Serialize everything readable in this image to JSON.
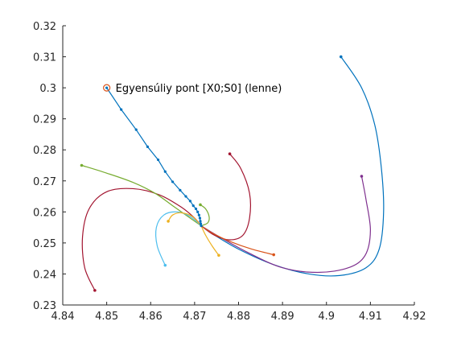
{
  "chart_data": {
    "type": "line",
    "title": "",
    "xlabel": "",
    "ylabel": "",
    "xlim": [
      4.84,
      4.92
    ],
    "ylim": [
      0.23,
      0.32
    ],
    "x_ticks": [
      "4.84",
      "4.85",
      "4.86",
      "4.87",
      "4.88",
      "4.89",
      "4.9",
      "4.91",
      "4.92"
    ],
    "y_ticks": [
      "0.23",
      "0.24",
      "0.25",
      "0.26",
      "0.27",
      "0.28",
      "0.29",
      "0.3",
      "0.31",
      "0.32"
    ],
    "grid": false,
    "equilibrium": {
      "x": 4.85,
      "y": 0.3,
      "label": "Egyensúliy pont [X0;S0] (lenne)",
      "color": "#D95319"
    },
    "center": {
      "x": 4.8715,
      "y": 0.2555
    },
    "dotted_line": {
      "color": "#0072BD",
      "points": [
        [
          4.85,
          0.3
        ],
        [
          4.8533,
          0.293
        ],
        [
          4.8567,
          0.2865
        ],
        [
          4.8593,
          0.281
        ],
        [
          4.8617,
          0.2768
        ],
        [
          4.8633,
          0.273
        ],
        [
          4.865,
          0.2697
        ],
        [
          4.8667,
          0.267
        ],
        [
          4.868,
          0.265
        ],
        [
          4.869,
          0.2635
        ],
        [
          4.8697,
          0.262
        ],
        [
          4.8703,
          0.261
        ],
        [
          4.8707,
          0.26
        ],
        [
          4.871,
          0.259
        ],
        [
          4.8712,
          0.258
        ],
        [
          4.8713,
          0.257
        ],
        [
          4.8714,
          0.2562
        ],
        [
          4.8715,
          0.2555
        ]
      ]
    },
    "series": [
      {
        "color": "#0072BD",
        "start": [
          4.9033,
          0.31
        ],
        "points": [
          [
            4.9033,
            0.31
          ],
          [
            4.908,
            0.3
          ],
          [
            4.911,
            0.288
          ],
          [
            4.9125,
            0.274
          ],
          [
            4.913,
            0.26
          ],
          [
            4.912,
            0.248
          ],
          [
            4.909,
            0.242
          ],
          [
            4.903,
            0.2395
          ],
          [
            4.896,
            0.24
          ],
          [
            4.888,
            0.243
          ],
          [
            4.88,
            0.248
          ],
          [
            4.874,
            0.253
          ],
          [
            4.8715,
            0.2555
          ]
        ]
      },
      {
        "color": "#7E2F8E",
        "start": [
          4.908,
          0.2715
        ],
        "points": [
          [
            4.908,
            0.2715
          ],
          [
            4.909,
            0.264
          ],
          [
            4.91,
            0.254
          ],
          [
            4.9088,
            0.246
          ],
          [
            4.905,
            0.242
          ],
          [
            4.898,
            0.2405
          ],
          [
            4.89,
            0.242
          ],
          [
            4.882,
            0.247
          ],
          [
            4.875,
            0.2525
          ],
          [
            4.8715,
            0.2555
          ]
        ]
      },
      {
        "color": "#A2142F",
        "start": [
          4.878,
          0.2787
        ],
        "points": [
          [
            4.878,
            0.2787
          ],
          [
            4.8805,
            0.274
          ],
          [
            4.8825,
            0.266
          ],
          [
            4.8825,
            0.258
          ],
          [
            4.881,
            0.2525
          ],
          [
            4.878,
            0.251
          ],
          [
            4.8745,
            0.2525
          ],
          [
            4.8715,
            0.2555
          ]
        ]
      },
      {
        "color": "#A2142F",
        "start": [
          4.8473,
          0.2347
        ],
        "points": [
          [
            4.8473,
            0.2347
          ],
          [
            4.845,
            0.242
          ],
          [
            4.8445,
            0.252
          ],
          [
            4.846,
            0.261
          ],
          [
            4.85,
            0.2665
          ],
          [
            4.856,
            0.2675
          ],
          [
            4.862,
            0.2655
          ],
          [
            4.867,
            0.2615
          ],
          [
            4.87,
            0.258
          ],
          [
            4.8715,
            0.2555
          ]
        ]
      },
      {
        "color": "#77AC30",
        "start": [
          4.8443,
          0.275
        ],
        "points": [
          [
            4.8443,
            0.275
          ],
          [
            4.85,
            0.2725
          ],
          [
            4.856,
            0.2695
          ],
          [
            4.861,
            0.266
          ],
          [
            4.865,
            0.262
          ],
          [
            4.8685,
            0.2585
          ],
          [
            4.8715,
            0.2555
          ]
        ]
      },
      {
        "color": "#77AC30",
        "start": [
          4.8713,
          0.2623
        ],
        "points": [
          [
            4.8713,
            0.2623
          ],
          [
            4.8725,
            0.261
          ],
          [
            4.8733,
            0.2585
          ],
          [
            4.873,
            0.2565
          ],
          [
            4.8715,
            0.2555
          ]
        ]
      },
      {
        "color": "#4DBEEE",
        "start": [
          4.8633,
          0.2428
        ],
        "points": [
          [
            4.8633,
            0.2428
          ],
          [
            4.8615,
            0.249
          ],
          [
            4.8613,
            0.255
          ],
          [
            4.863,
            0.259
          ],
          [
            4.866,
            0.26
          ],
          [
            4.869,
            0.2585
          ],
          [
            4.8715,
            0.2555
          ]
        ]
      },
      {
        "color": "#EDB120",
        "start": [
          4.864,
          0.257
        ],
        "points": [
          [
            4.864,
            0.257
          ],
          [
            4.865,
            0.259
          ],
          [
            4.867,
            0.2597
          ],
          [
            4.8695,
            0.2585
          ],
          [
            4.8715,
            0.2555
          ]
        ]
      },
      {
        "color": "#EDB120",
        "start": [
          4.8755,
          0.246
        ],
        "points": [
          [
            4.8755,
            0.246
          ],
          [
            4.874,
            0.249
          ],
          [
            4.8725,
            0.2525
          ],
          [
            4.8715,
            0.2555
          ]
        ]
      },
      {
        "color": "#D95319",
        "start": [
          4.888,
          0.2462
        ],
        "points": [
          [
            4.888,
            0.2462
          ],
          [
            4.883,
            0.248
          ],
          [
            4.878,
            0.2505
          ],
          [
            4.874,
            0.2532
          ],
          [
            4.8715,
            0.2555
          ]
        ]
      }
    ]
  }
}
